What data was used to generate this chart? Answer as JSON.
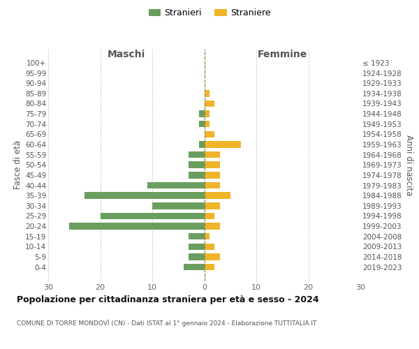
{
  "age_groups": [
    "100+",
    "95-99",
    "90-94",
    "85-89",
    "80-84",
    "75-79",
    "70-74",
    "65-69",
    "60-64",
    "55-59",
    "50-54",
    "45-49",
    "40-44",
    "35-39",
    "30-34",
    "25-29",
    "20-24",
    "15-19",
    "10-14",
    "5-9",
    "0-4"
  ],
  "birth_years": [
    "≤ 1923",
    "1924-1928",
    "1929-1933",
    "1934-1938",
    "1939-1943",
    "1944-1948",
    "1949-1953",
    "1954-1958",
    "1959-1963",
    "1964-1968",
    "1969-1973",
    "1974-1978",
    "1979-1983",
    "1984-1988",
    "1989-1993",
    "1994-1998",
    "1999-2003",
    "2004-2008",
    "2009-2013",
    "2014-2018",
    "2019-2023"
  ],
  "maschi": [
    0,
    0,
    0,
    0,
    0,
    1,
    1,
    0,
    1,
    3,
    3,
    3,
    11,
    23,
    10,
    20,
    26,
    3,
    3,
    3,
    4
  ],
  "femmine": [
    0,
    0,
    0,
    1,
    2,
    1,
    1,
    2,
    7,
    3,
    3,
    3,
    3,
    5,
    3,
    2,
    3,
    1,
    2,
    3,
    2
  ],
  "male_color": "#6a9e5e",
  "female_color": "#f0b429",
  "grid_color": "#cccccc",
  "center_line_color": "#888855",
  "title": "Popolazione per cittadinanza straniera per età e sesso - 2024",
  "subtitle": "COMUNE DI TORRE MONDOVÌ (CN) - Dati ISTAT al 1° gennaio 2024 - Elaborazione TUTTITALIA.IT",
  "ylabel_left": "Fasce di età",
  "ylabel_right": "Anni di nascita",
  "xlabel_maschi": "Maschi",
  "xlabel_femmine": "Femmine",
  "legend_maschi": "Stranieri",
  "legend_femmine": "Straniere",
  "xlim": 30,
  "background_color": "#ffffff"
}
